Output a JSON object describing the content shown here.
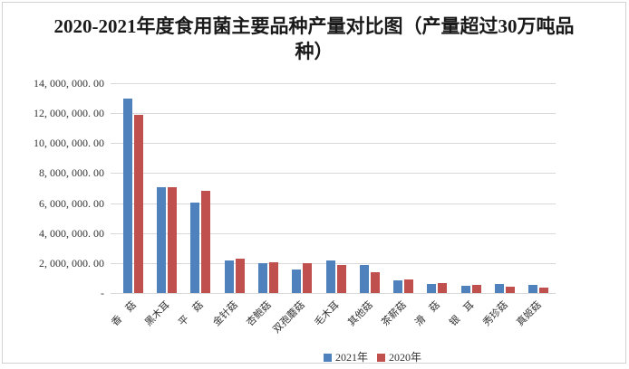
{
  "chart_data": {
    "type": "bar",
    "title": "2020-2021年度食用菌主要品种产量对比图（产量超过30万吨品种）",
    "categories": [
      "香　菇",
      "黑木耳",
      "平　菇",
      "金针菇",
      "杏鲍菇",
      "双孢蘑菇",
      "毛木耳",
      "其他菇",
      "茶薪菇",
      "滑　菇",
      "银　耳",
      "秀珍菇",
      "真姬菇"
    ],
    "series": [
      {
        "name": "2021年",
        "color": "#4F81BD",
        "values": [
          13000000,
          7050000,
          6050000,
          2150000,
          2000000,
          1600000,
          2200000,
          1850000,
          850000,
          600000,
          500000,
          580000,
          540000
        ]
      },
      {
        "name": "2020年",
        "color": "#C0504D",
        "values": [
          11900000,
          7050000,
          6800000,
          2300000,
          2050000,
          2000000,
          1850000,
          1400000,
          900000,
          650000,
          540000,
          440000,
          380000
        ]
      }
    ],
    "xlabel": "",
    "ylabel": "",
    "ylim": [
      0,
      14000000
    ],
    "ytick_step": 2000000,
    "ytick_labels": [
      "-",
      "2, 000, 000. 00",
      "4, 000, 000. 00",
      "6, 000, 000. 00",
      "8, 000, 000. 00",
      "10, 000, 000. 00",
      "12, 000, 000. 00",
      "14, 000, 000. 00"
    ],
    "grid": true,
    "legend_position": "bottom-center"
  },
  "colors": {
    "gridline": "#D9D9D9",
    "border": "#D3D3D3",
    "axis_text": "#333333",
    "title_text": "#1A1A1A",
    "background": "#FFFFFF"
  }
}
